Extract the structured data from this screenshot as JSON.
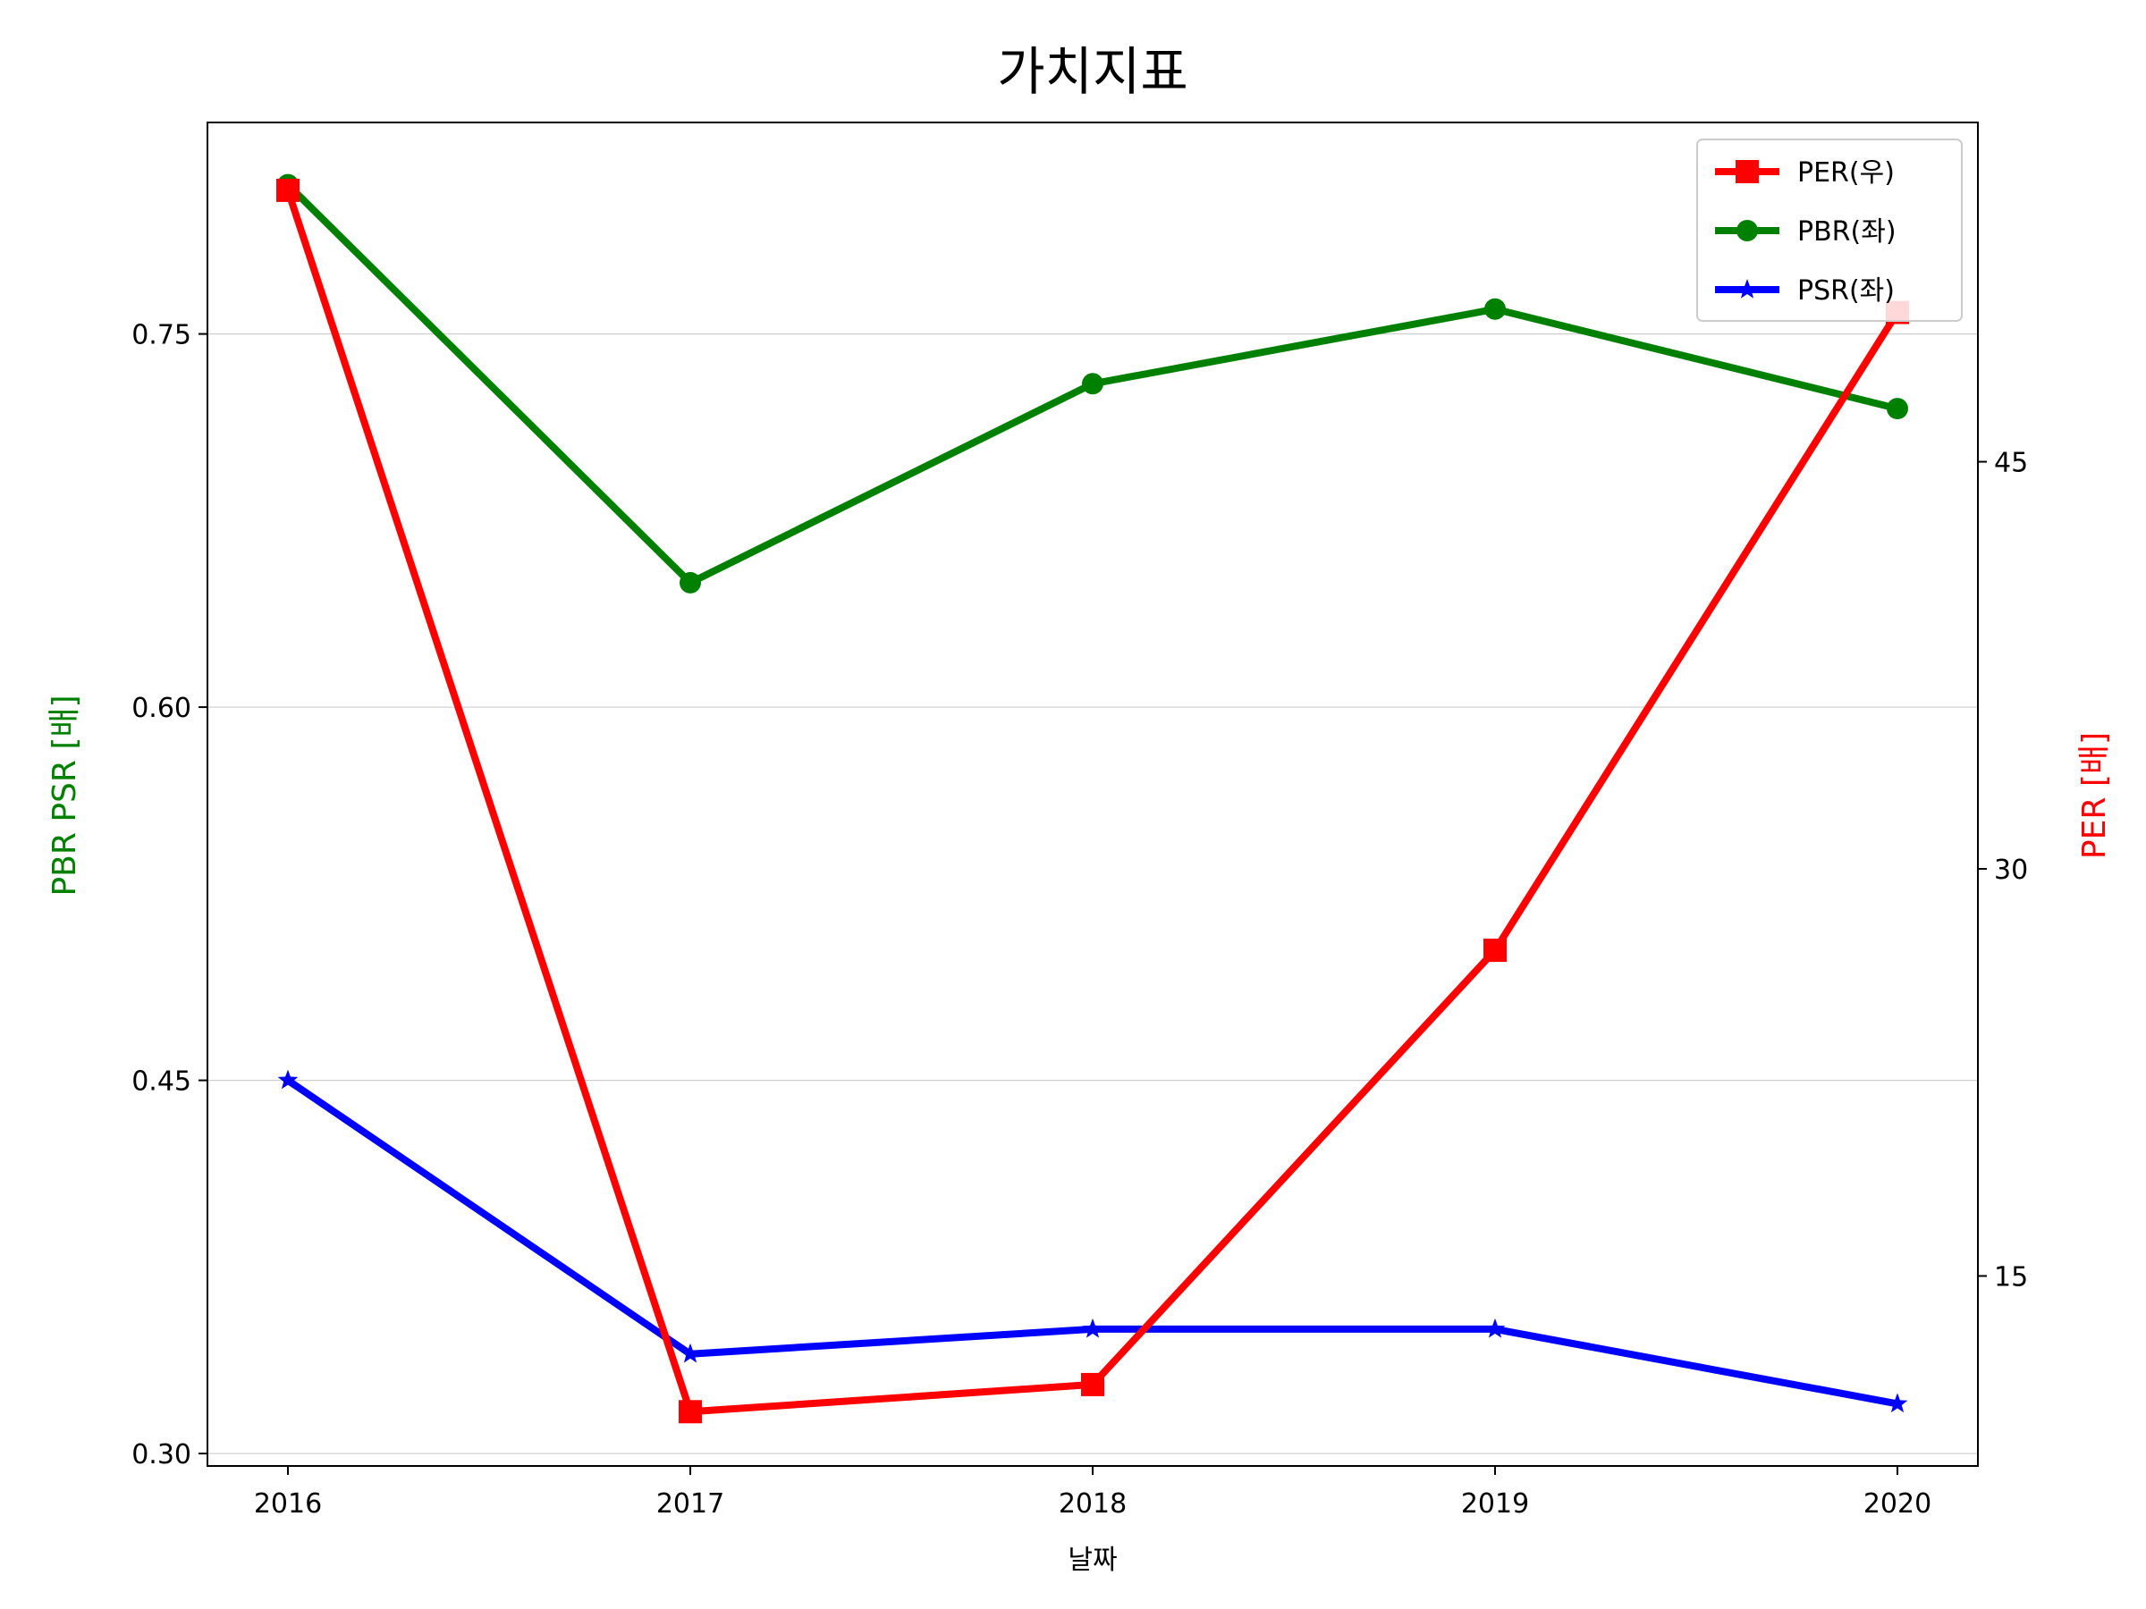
{
  "chart_data": {
    "type": "line",
    "title": "가치지표",
    "xlabel": "날짜",
    "ylabel_left": "PBR PSR [배]",
    "ylabel_right": "PER [배]",
    "categories": [
      "2016",
      "2017",
      "2018",
      "2019",
      "2020"
    ],
    "left_axis": {
      "ylim": [
        0.295,
        0.835
      ],
      "ticks": [
        "0.30",
        "0.45",
        "0.60",
        "0.75"
      ],
      "tick_values": [
        0.3,
        0.45,
        0.6,
        0.75
      ],
      "color": "#008000"
    },
    "right_axis": {
      "ylim": [
        8.0,
        57.5
      ],
      "ticks": [
        "15",
        "30",
        "45"
      ],
      "tick_values": [
        15,
        30,
        45
      ],
      "color": "#ff0000"
    },
    "grid": "horizontal-left",
    "legend": {
      "placement": "top-right"
    },
    "series": [
      {
        "name": "PER(우)",
        "axis": "right",
        "color": "#ff0000",
        "marker": "square",
        "values": [
          55.0,
          10.0,
          11.0,
          27.0,
          50.5
        ]
      },
      {
        "name": "PBR(좌)",
        "axis": "left",
        "color": "#008000",
        "marker": "circle",
        "values": [
          0.81,
          0.65,
          0.73,
          0.76,
          0.72
        ]
      },
      {
        "name": "PSR(좌)",
        "axis": "left",
        "color": "#0000ff",
        "marker": "star",
        "values": [
          0.45,
          0.34,
          0.35,
          0.35,
          0.32
        ]
      }
    ]
  }
}
